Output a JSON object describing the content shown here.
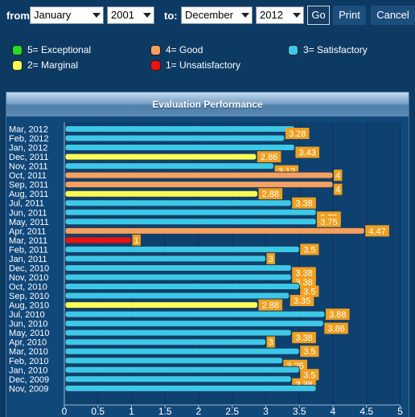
{
  "filters": {
    "from_label": "from:",
    "from_month": "January",
    "from_year": "2001",
    "to_label": "to:",
    "to_month": "December",
    "to_year": "2012",
    "go_label": "Go",
    "print_label": "Print",
    "cancel_label": "Cancel"
  },
  "legend": [
    {
      "label": "5= Exceptional",
      "color": "#22dd22"
    },
    {
      "label": "4= Good",
      "color": "#f5a060"
    },
    {
      "label": "3= Satisfactory",
      "color": "#3cc8e8"
    },
    {
      "label": "2= Marginal",
      "color": "#ffff55"
    },
    {
      "label": "1= Unsatisfactory",
      "color": "#ee1111"
    }
  ],
  "panel": {
    "title": "Evaluation Performance"
  },
  "chart_data": {
    "type": "bar",
    "orientation": "horizontal",
    "title": "Evaluation Performance",
    "xlim": [
      0,
      5
    ],
    "x_ticks": [
      "0",
      "0.5",
      "1",
      "1.5",
      "2",
      "2.5",
      "3",
      "3.5",
      "4",
      "4.5",
      "5"
    ],
    "categories": [
      "Mar, 2012",
      "Feb, 2012",
      "Jan, 2012",
      "Dec, 2011",
      "Nov, 2011",
      "Oct, 2011",
      "Sep, 2011",
      "Aug, 2011",
      "Jul, 2011",
      "Jun, 2011",
      "May, 2011",
      "Apr, 2011",
      "Mar, 2011",
      "Feb, 2011",
      "Jan, 2011",
      "Dec, 2010",
      "Nov, 2010",
      "Oct, 2010",
      "Sep, 2010",
      "Aug, 2010",
      "Jul, 2010",
      "Jun, 2010",
      "May, 2010",
      "Apr, 2010",
      "Mar, 2010",
      "Feb, 2010",
      "Jan, 2010",
      "Dec, 2009",
      "Nov, 2009"
    ],
    "values": [
      3.43,
      3.28,
      3.43,
      2.86,
      3.12,
      4,
      4,
      2.88,
      3.38,
      3.75,
      3.75,
      4.47,
      1,
      3.5,
      3,
      3.38,
      3.38,
      3.5,
      3.35,
      2.88,
      3.88,
      3.86,
      3.38,
      3,
      3.5,
      3.25,
      3.5,
      3.38,
      3.75
    ],
    "labels": [
      "",
      "3.28",
      "3.43",
      "2.86",
      "3.12",
      "4",
      "4",
      "2.88",
      "3.38",
      "3.75",
      "3.75",
      "4.47",
      "1",
      "3.5",
      "3",
      "3.38",
      "3.38",
      "3.5",
      "3.35",
      "2.88",
      "3.88",
      "3.86",
      "3.38",
      "3",
      "3.5",
      "3.25",
      "3.5",
      "3.38",
      ""
    ],
    "label_offsets": [
      0,
      -1,
      1,
      0,
      1,
      0,
      1,
      0,
      0,
      1,
      0,
      0,
      0,
      0,
      0,
      1,
      1,
      1,
      1,
      0,
      0,
      1,
      1,
      0,
      0,
      1,
      1,
      1,
      0
    ],
    "bar_colors": {
      "satisfactory": "#3cc8e8",
      "good": "#f5a060",
      "marginal": "#ffff55",
      "unsatisfactory": "#ee1111"
    },
    "label_color": "#f0a020",
    "grid": true
  }
}
